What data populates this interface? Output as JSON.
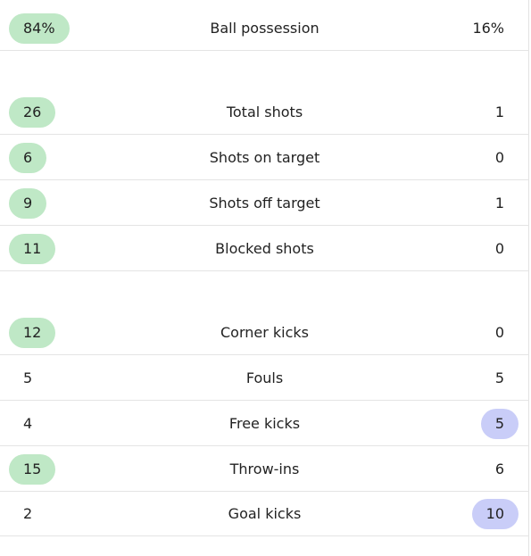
{
  "colors": {
    "home_highlight": "#bfe8c6",
    "away_highlight": "#c9cdf8",
    "divider": "#e4e4e4"
  },
  "stats": [
    {
      "label": "Ball possession",
      "home": "84%",
      "away": "16%",
      "leader": "home"
    },
    {
      "label": "Total shots",
      "home": "26",
      "away": "1",
      "leader": "home"
    },
    {
      "label": "Shots on target",
      "home": "6",
      "away": "0",
      "leader": "home"
    },
    {
      "label": "Shots off target",
      "home": "9",
      "away": "1",
      "leader": "home"
    },
    {
      "label": "Blocked shots",
      "home": "11",
      "away": "0",
      "leader": "home"
    },
    {
      "label": "Corner kicks",
      "home": "12",
      "away": "0",
      "leader": "home"
    },
    {
      "label": "Fouls",
      "home": "5",
      "away": "5",
      "leader": "none"
    },
    {
      "label": "Free kicks",
      "home": "4",
      "away": "5",
      "leader": "away"
    },
    {
      "label": "Throw-ins",
      "home": "15",
      "away": "6",
      "leader": "home"
    },
    {
      "label": "Goal kicks",
      "home": "2",
      "away": "10",
      "leader": "away"
    }
  ]
}
